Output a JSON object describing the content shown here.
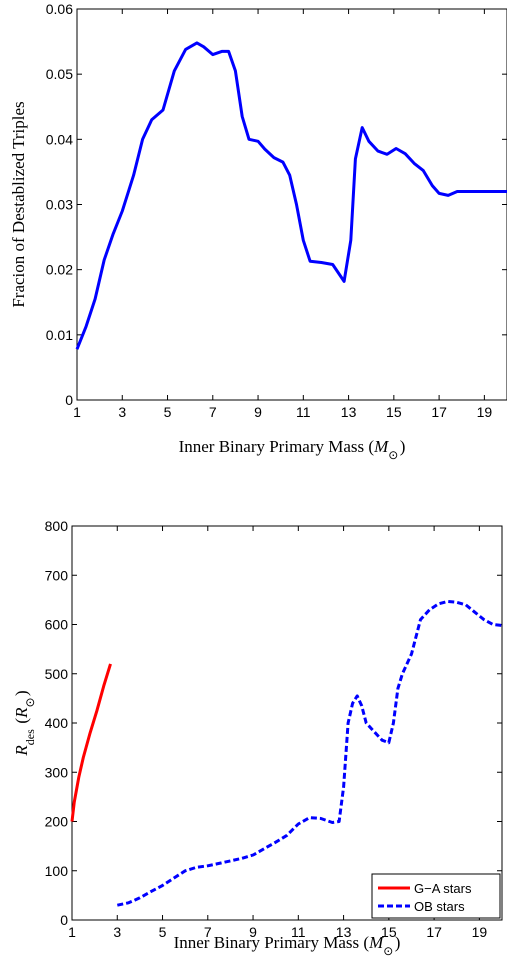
{
  "chart_data": [
    {
      "type": "line",
      "xlabel": "Inner Binary Primary Mass ($M_\\odot$)",
      "ylabel": "Fracion of Destablized Triples",
      "xlim": [
        1,
        20
      ],
      "ylim": [
        0,
        0.06
      ],
      "xticks": [
        1,
        3,
        5,
        7,
        9,
        11,
        13,
        15,
        17,
        19
      ],
      "yticks": [
        0,
        0.01,
        0.02,
        0.03,
        0.04,
        0.05,
        0.06
      ],
      "ytick_labels": [
        "0",
        "0.01",
        "0.02",
        "0.03",
        "0.04",
        "0.05",
        "0.06"
      ],
      "grid": false,
      "series": [
        {
          "color": "#0000ff",
          "style": "solid",
          "x": [
            1,
            1.4,
            1.8,
            2.2,
            2.6,
            3.0,
            3.5,
            3.9,
            4.3,
            4.8,
            5.3,
            5.8,
            6.3,
            6.6,
            7.0,
            7.4,
            7.7,
            8.0,
            8.3,
            8.6,
            9.0,
            9.3,
            9.7,
            10.1,
            10.4,
            10.7,
            11.0,
            11.3,
            11.8,
            12.3,
            12.8,
            13.1,
            13.3,
            13.6,
            13.9,
            14.3,
            14.7,
            15.1,
            15.5,
            15.9,
            16.3,
            16.7,
            17.0,
            17.4,
            17.8,
            18.5,
            19.2,
            20.0
          ],
          "y": [
            0.0078,
            0.0113,
            0.0155,
            0.0215,
            0.0255,
            0.029,
            0.0345,
            0.04,
            0.043,
            0.0445,
            0.0505,
            0.0538,
            0.0548,
            0.0542,
            0.053,
            0.0535,
            0.0535,
            0.0505,
            0.0435,
            0.04,
            0.0397,
            0.0385,
            0.0372,
            0.0365,
            0.0345,
            0.03,
            0.0245,
            0.0213,
            0.0211,
            0.0208,
            0.0182,
            0.0245,
            0.037,
            0.0418,
            0.0397,
            0.0382,
            0.0377,
            0.0386,
            0.0378,
            0.0363,
            0.0352,
            0.0329,
            0.0317,
            0.0314,
            0.032,
            0.032,
            0.032,
            0.032
          ]
        }
      ]
    },
    {
      "type": "line",
      "xlabel": "Inner Binary Primary Mass ($M_\\odot$)",
      "ylabel": "$R_{\\rm des}$ ($R_\\odot$)",
      "xlim": [
        1,
        20
      ],
      "ylim": [
        0,
        800
      ],
      "xticks": [
        1,
        3,
        5,
        7,
        9,
        11,
        13,
        15,
        17,
        19
      ],
      "yticks": [
        0,
        100,
        200,
        300,
        400,
        500,
        600,
        700,
        800
      ],
      "ytick_labels": [
        "0",
        "100",
        "200",
        "300",
        "400",
        "500",
        "600",
        "700",
        "800"
      ],
      "grid": false,
      "legend": "bottom-right",
      "series": [
        {
          "name": "G−A stars",
          "color": "#ff0000",
          "style": "solid",
          "x": [
            1.0,
            1.1,
            1.3,
            1.5,
            1.8,
            2.1,
            2.4,
            2.7
          ],
          "y": [
            200,
            240,
            290,
            330,
            380,
            425,
            475,
            520
          ]
        },
        {
          "name": "OB stars",
          "color": "#0000ff",
          "style": "dashed",
          "x": [
            3.0,
            3.5,
            4.0,
            4.5,
            5.0,
            5.5,
            6.0,
            6.5,
            7.0,
            7.5,
            8.0,
            8.5,
            9.0,
            9.5,
            10.0,
            10.5,
            11.0,
            11.5,
            12.0,
            12.5,
            12.8,
            13.0,
            13.2,
            13.4,
            13.6,
            13.8,
            14.0,
            14.3,
            14.7,
            15.0,
            15.2,
            15.4,
            15.6,
            16.0,
            16.4,
            16.8,
            17.2,
            17.6,
            18.0,
            18.4,
            18.8,
            19.2,
            19.6,
            20.0
          ],
          "y": [
            30,
            35,
            45,
            58,
            70,
            85,
            100,
            107,
            110,
            115,
            120,
            125,
            132,
            145,
            158,
            172,
            195,
            208,
            206,
            198,
            200,
            270,
            400,
            440,
            455,
            435,
            400,
            385,
            365,
            360,
            400,
            470,
            500,
            540,
            610,
            630,
            642,
            647,
            645,
            640,
            625,
            610,
            600,
            598
          ]
        }
      ]
    }
  ]
}
